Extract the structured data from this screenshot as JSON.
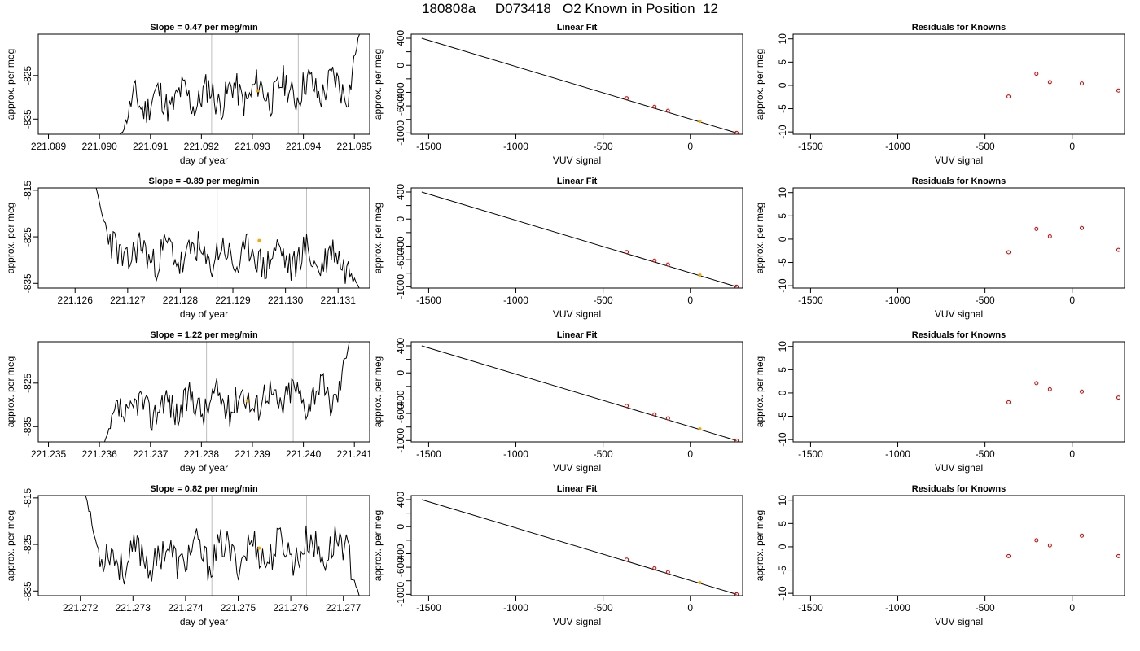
{
  "page_title": "180808a     D073418   O2 Known in Position  12",
  "colors": {
    "trace": "#000000",
    "vline": "#bebebe",
    "marker": "#ffa500",
    "residual": "#cd0000",
    "fitline": "#000000"
  },
  "chart_data": [
    {
      "type": "line",
      "row": 0,
      "title": "Slope =  0.47  per meg/min",
      "xlabel": "day of year",
      "ylabel": "approx. per meg",
      "xlim": [
        221.0888,
        221.0953
      ],
      "ylim": [
        -838.5,
        -815.5
      ],
      "xticks": [
        221.089,
        221.09,
        221.091,
        221.092,
        221.093,
        221.094,
        221.095
      ],
      "xtick_labels": [
        "221.089",
        "221.090",
        "221.091",
        "221.092",
        "221.093",
        "221.094",
        "221.095"
      ],
      "yticks": [
        -835,
        -825
      ],
      "ytick_labels": [
        "-835",
        "-825"
      ],
      "x_start": 221.0904,
      "x_end": 221.0951,
      "y_start": -838.5,
      "y_end": -815.5,
      "vlines": [
        221.0922,
        221.0939
      ],
      "marker": {
        "x": 221.0931,
        "y": -828.5
      },
      "noise_seed": 11
    },
    {
      "type": "line",
      "row": 1,
      "title": "Slope =  -0.89  per meg/min",
      "xlabel": "day of year",
      "ylabel": "approx. per meg",
      "xlim": [
        221.1253,
        221.1316
      ],
      "ylim": [
        -836.0,
        -814.5
      ],
      "xticks": [
        221.126,
        221.127,
        221.128,
        221.129,
        221.13,
        221.131
      ],
      "xtick_labels": [
        "221.126",
        "221.127",
        "221.128",
        "221.129",
        "221.130",
        "221.131"
      ],
      "yticks": [
        -835,
        -825,
        -815
      ],
      "ytick_labels": [
        "-835",
        "-825",
        "-815"
      ],
      "x_start": 221.1264,
      "x_end": 221.1314,
      "y_start": -814.5,
      "y_end": -836.0,
      "vlines": [
        221.1287,
        221.1304
      ],
      "marker": {
        "x": 221.1295,
        "y": -825.8
      },
      "noise_seed": 23
    },
    {
      "type": "line",
      "row": 2,
      "title": "Slope =  1.22  per meg/min",
      "xlabel": "day of year",
      "ylabel": "approx. per meg",
      "xlim": [
        221.2348,
        221.2413
      ],
      "ylim": [
        -838.5,
        -815.5
      ],
      "xticks": [
        221.235,
        221.236,
        221.237,
        221.238,
        221.239,
        221.24,
        221.241
      ],
      "xtick_labels": [
        "221.235",
        "221.236",
        "221.237",
        "221.238",
        "221.239",
        "221.240",
        "221.241"
      ],
      "yticks": [
        -835,
        -825
      ],
      "ytick_labels": [
        "-835",
        "-825"
      ],
      "x_start": 221.2361,
      "x_end": 221.2409,
      "y_start": -838.5,
      "y_end": -815.5,
      "vlines": [
        221.2381,
        221.2398
      ],
      "marker": {
        "x": 221.2389,
        "y": -829.0
      },
      "noise_seed": 37
    },
    {
      "type": "line",
      "row": 3,
      "title": "Slope =  0.82  per meg/min",
      "xlabel": "day of year",
      "ylabel": "approx. per meg",
      "xlim": [
        221.2712,
        221.2775
      ],
      "ylim": [
        -836.0,
        -814.5
      ],
      "xticks": [
        221.272,
        221.273,
        221.274,
        221.275,
        221.276,
        221.277
      ],
      "xtick_labels": [
        "221.272",
        "221.273",
        "221.274",
        "221.275",
        "221.276",
        "221.277"
      ],
      "yticks": [
        -835,
        -825,
        -815
      ],
      "ytick_labels": [
        "-835",
        "-825",
        "-815"
      ],
      "x_start": 221.2721,
      "x_end": 221.2773,
      "y_start": -814.5,
      "y_end": -836.0,
      "vlines": [
        221.2745,
        221.2763
      ],
      "marker": {
        "x": 221.2754,
        "y": -825.8
      },
      "noise_seed": 53
    },
    {
      "type": "scatter",
      "row": 0,
      "title": "Linear Fit",
      "xlabel": "VUV signal",
      "ylabel": "approx. per meg",
      "xlim": [
        -1600,
        300
      ],
      "ylim": [
        -1020,
        460
      ],
      "xticks": [
        -1500,
        -1000,
        -500,
        0
      ],
      "xtick_labels": [
        "-1500",
        "-1000",
        "-500",
        "0"
      ],
      "yticks": [
        -1000,
        -800,
        -600,
        -400,
        -200,
        0,
        200,
        400
      ],
      "ytick_labels": [
        "-1000",
        "",
        "-600",
        "-400",
        "",
        "0",
        "",
        "400"
      ],
      "fit_line": {
        "x": [
          -1540,
          265
        ],
        "y": [
          400,
          -1000
        ]
      },
      "points": [
        {
          "x": -365,
          "y": -487
        },
        {
          "x": -205,
          "y": -614
        },
        {
          "x": -128,
          "y": -673
        },
        {
          "x": 265,
          "y": -1000
        }
      ],
      "highlight": {
        "x": 55,
        "y": -827
      }
    },
    {
      "type": "scatter",
      "row": 1,
      "title": "Linear Fit",
      "xlabel": "VUV signal",
      "ylabel": "approx. per meg",
      "xlim": [
        -1600,
        300
      ],
      "ylim": [
        -1020,
        460
      ],
      "xticks": [
        -1500,
        -1000,
        -500,
        0
      ],
      "xtick_labels": [
        "-1500",
        "-1000",
        "-500",
        "0"
      ],
      "yticks": [
        -1000,
        -800,
        -600,
        -400,
        -200,
        0,
        200,
        400
      ],
      "ytick_labels": [
        "-1000",
        "",
        "-600",
        "-400",
        "",
        "0",
        "",
        "400"
      ],
      "fit_line": {
        "x": [
          -1540,
          265
        ],
        "y": [
          400,
          -1000
        ]
      },
      "points": [
        {
          "x": -365,
          "y": -487
        },
        {
          "x": -205,
          "y": -614
        },
        {
          "x": -128,
          "y": -673
        },
        {
          "x": 265,
          "y": -1000
        }
      ],
      "highlight": {
        "x": 55,
        "y": -827
      }
    },
    {
      "type": "scatter",
      "row": 2,
      "title": "Linear Fit",
      "xlabel": "VUV signal",
      "ylabel": "approx. per meg",
      "xlim": [
        -1600,
        300
      ],
      "ylim": [
        -1020,
        460
      ],
      "xticks": [
        -1500,
        -1000,
        -500,
        0
      ],
      "xtick_labels": [
        "-1500",
        "-1000",
        "-500",
        "0"
      ],
      "yticks": [
        -1000,
        -800,
        -600,
        -400,
        -200,
        0,
        200,
        400
      ],
      "ytick_labels": [
        "-1000",
        "",
        "-600",
        "-400",
        "",
        "0",
        "",
        "400"
      ],
      "fit_line": {
        "x": [
          -1540,
          265
        ],
        "y": [
          400,
          -1000
        ]
      },
      "points": [
        {
          "x": -365,
          "y": -487
        },
        {
          "x": -205,
          "y": -614
        },
        {
          "x": -128,
          "y": -673
        },
        {
          "x": 265,
          "y": -1000
        }
      ],
      "highlight": {
        "x": 55,
        "y": -827
      }
    },
    {
      "type": "scatter",
      "row": 3,
      "title": "Linear Fit",
      "xlabel": "VUV signal",
      "ylabel": "approx. per meg",
      "xlim": [
        -1600,
        300
      ],
      "ylim": [
        -1020,
        460
      ],
      "xticks": [
        -1500,
        -1000,
        -500,
        0
      ],
      "xtick_labels": [
        "-1500",
        "-1000",
        "-500",
        "0"
      ],
      "yticks": [
        -1000,
        -800,
        -600,
        -400,
        -200,
        0,
        200,
        400
      ],
      "ytick_labels": [
        "-1000",
        "",
        "-600",
        "-400",
        "",
        "0",
        "",
        "400"
      ],
      "fit_line": {
        "x": [
          -1540,
          265
        ],
        "y": [
          400,
          -1000
        ]
      },
      "points": [
        {
          "x": -365,
          "y": -487
        },
        {
          "x": -205,
          "y": -614
        },
        {
          "x": -128,
          "y": -673
        },
        {
          "x": 265,
          "y": -1000
        }
      ],
      "highlight": {
        "x": 55,
        "y": -827
      }
    },
    {
      "type": "scatter",
      "row": 0,
      "title": "Residuals for Knowns",
      "xlabel": "VUV signal",
      "ylabel": "approx. per meg",
      "xlim": [
        -1600,
        300
      ],
      "ylim": [
        -10.5,
        11
      ],
      "xticks": [
        -1500,
        -1000,
        -500,
        0
      ],
      "xtick_labels": [
        "-1500",
        "-1000",
        "-500",
        "0"
      ],
      "yticks": [
        -10,
        -5,
        0,
        5,
        10
      ],
      "ytick_labels": [
        "-10",
        "-5",
        "0",
        "5",
        "10"
      ],
      "points": [
        {
          "x": -365,
          "y": -2.4
        },
        {
          "x": -205,
          "y": 2.5
        },
        {
          "x": -128,
          "y": 0.7
        },
        {
          "x": 55,
          "y": 0.4
        },
        {
          "x": 265,
          "y": -1.1
        }
      ]
    },
    {
      "type": "scatter",
      "row": 1,
      "title": "Residuals for Knowns",
      "xlabel": "VUV signal",
      "ylabel": "approx. per meg",
      "xlim": [
        -1600,
        300
      ],
      "ylim": [
        -10.5,
        11
      ],
      "xticks": [
        -1500,
        -1000,
        -500,
        0
      ],
      "xtick_labels": [
        "-1500",
        "-1000",
        "-500",
        "0"
      ],
      "yticks": [
        -10,
        -5,
        0,
        5,
        10
      ],
      "ytick_labels": [
        "-10",
        "-5",
        "0",
        "5",
        "10"
      ],
      "points": [
        {
          "x": -365,
          "y": -2.8
        },
        {
          "x": -205,
          "y": 2.2
        },
        {
          "x": -128,
          "y": 0.6
        },
        {
          "x": 55,
          "y": 2.4
        },
        {
          "x": 265,
          "y": -2.3
        }
      ]
    },
    {
      "type": "scatter",
      "row": 2,
      "title": "Residuals for Knowns",
      "xlabel": "VUV signal",
      "ylabel": "approx. per meg",
      "xlim": [
        -1600,
        300
      ],
      "ylim": [
        -10.5,
        11
      ],
      "xticks": [
        -1500,
        -1000,
        -500,
        0
      ],
      "xtick_labels": [
        "-1500",
        "-1000",
        "-500",
        "0"
      ],
      "yticks": [
        -10,
        -5,
        0,
        5,
        10
      ],
      "ytick_labels": [
        "-10",
        "-5",
        "0",
        "5",
        "10"
      ],
      "points": [
        {
          "x": -365,
          "y": -2.0
        },
        {
          "x": -205,
          "y": 2.1
        },
        {
          "x": -128,
          "y": 0.8
        },
        {
          "x": 55,
          "y": 0.3
        },
        {
          "x": 265,
          "y": -1.0
        }
      ]
    },
    {
      "type": "scatter",
      "row": 3,
      "title": "Residuals for Knowns",
      "xlabel": "VUV signal",
      "ylabel": "approx. per meg",
      "xlim": [
        -1600,
        300
      ],
      "ylim": [
        -10.5,
        11
      ],
      "xticks": [
        -1500,
        -1000,
        -500,
        0
      ],
      "xtick_labels": [
        "-1500",
        "-1000",
        "-500",
        "0"
      ],
      "yticks": [
        -10,
        -5,
        0,
        5,
        10
      ],
      "ytick_labels": [
        "-10",
        "-5",
        "0",
        "5",
        "10"
      ],
      "points": [
        {
          "x": -365,
          "y": -2.0
        },
        {
          "x": -205,
          "y": 1.4
        },
        {
          "x": -128,
          "y": 0.3
        },
        {
          "x": 55,
          "y": 2.4
        },
        {
          "x": 265,
          "y": -2.0
        }
      ]
    }
  ]
}
